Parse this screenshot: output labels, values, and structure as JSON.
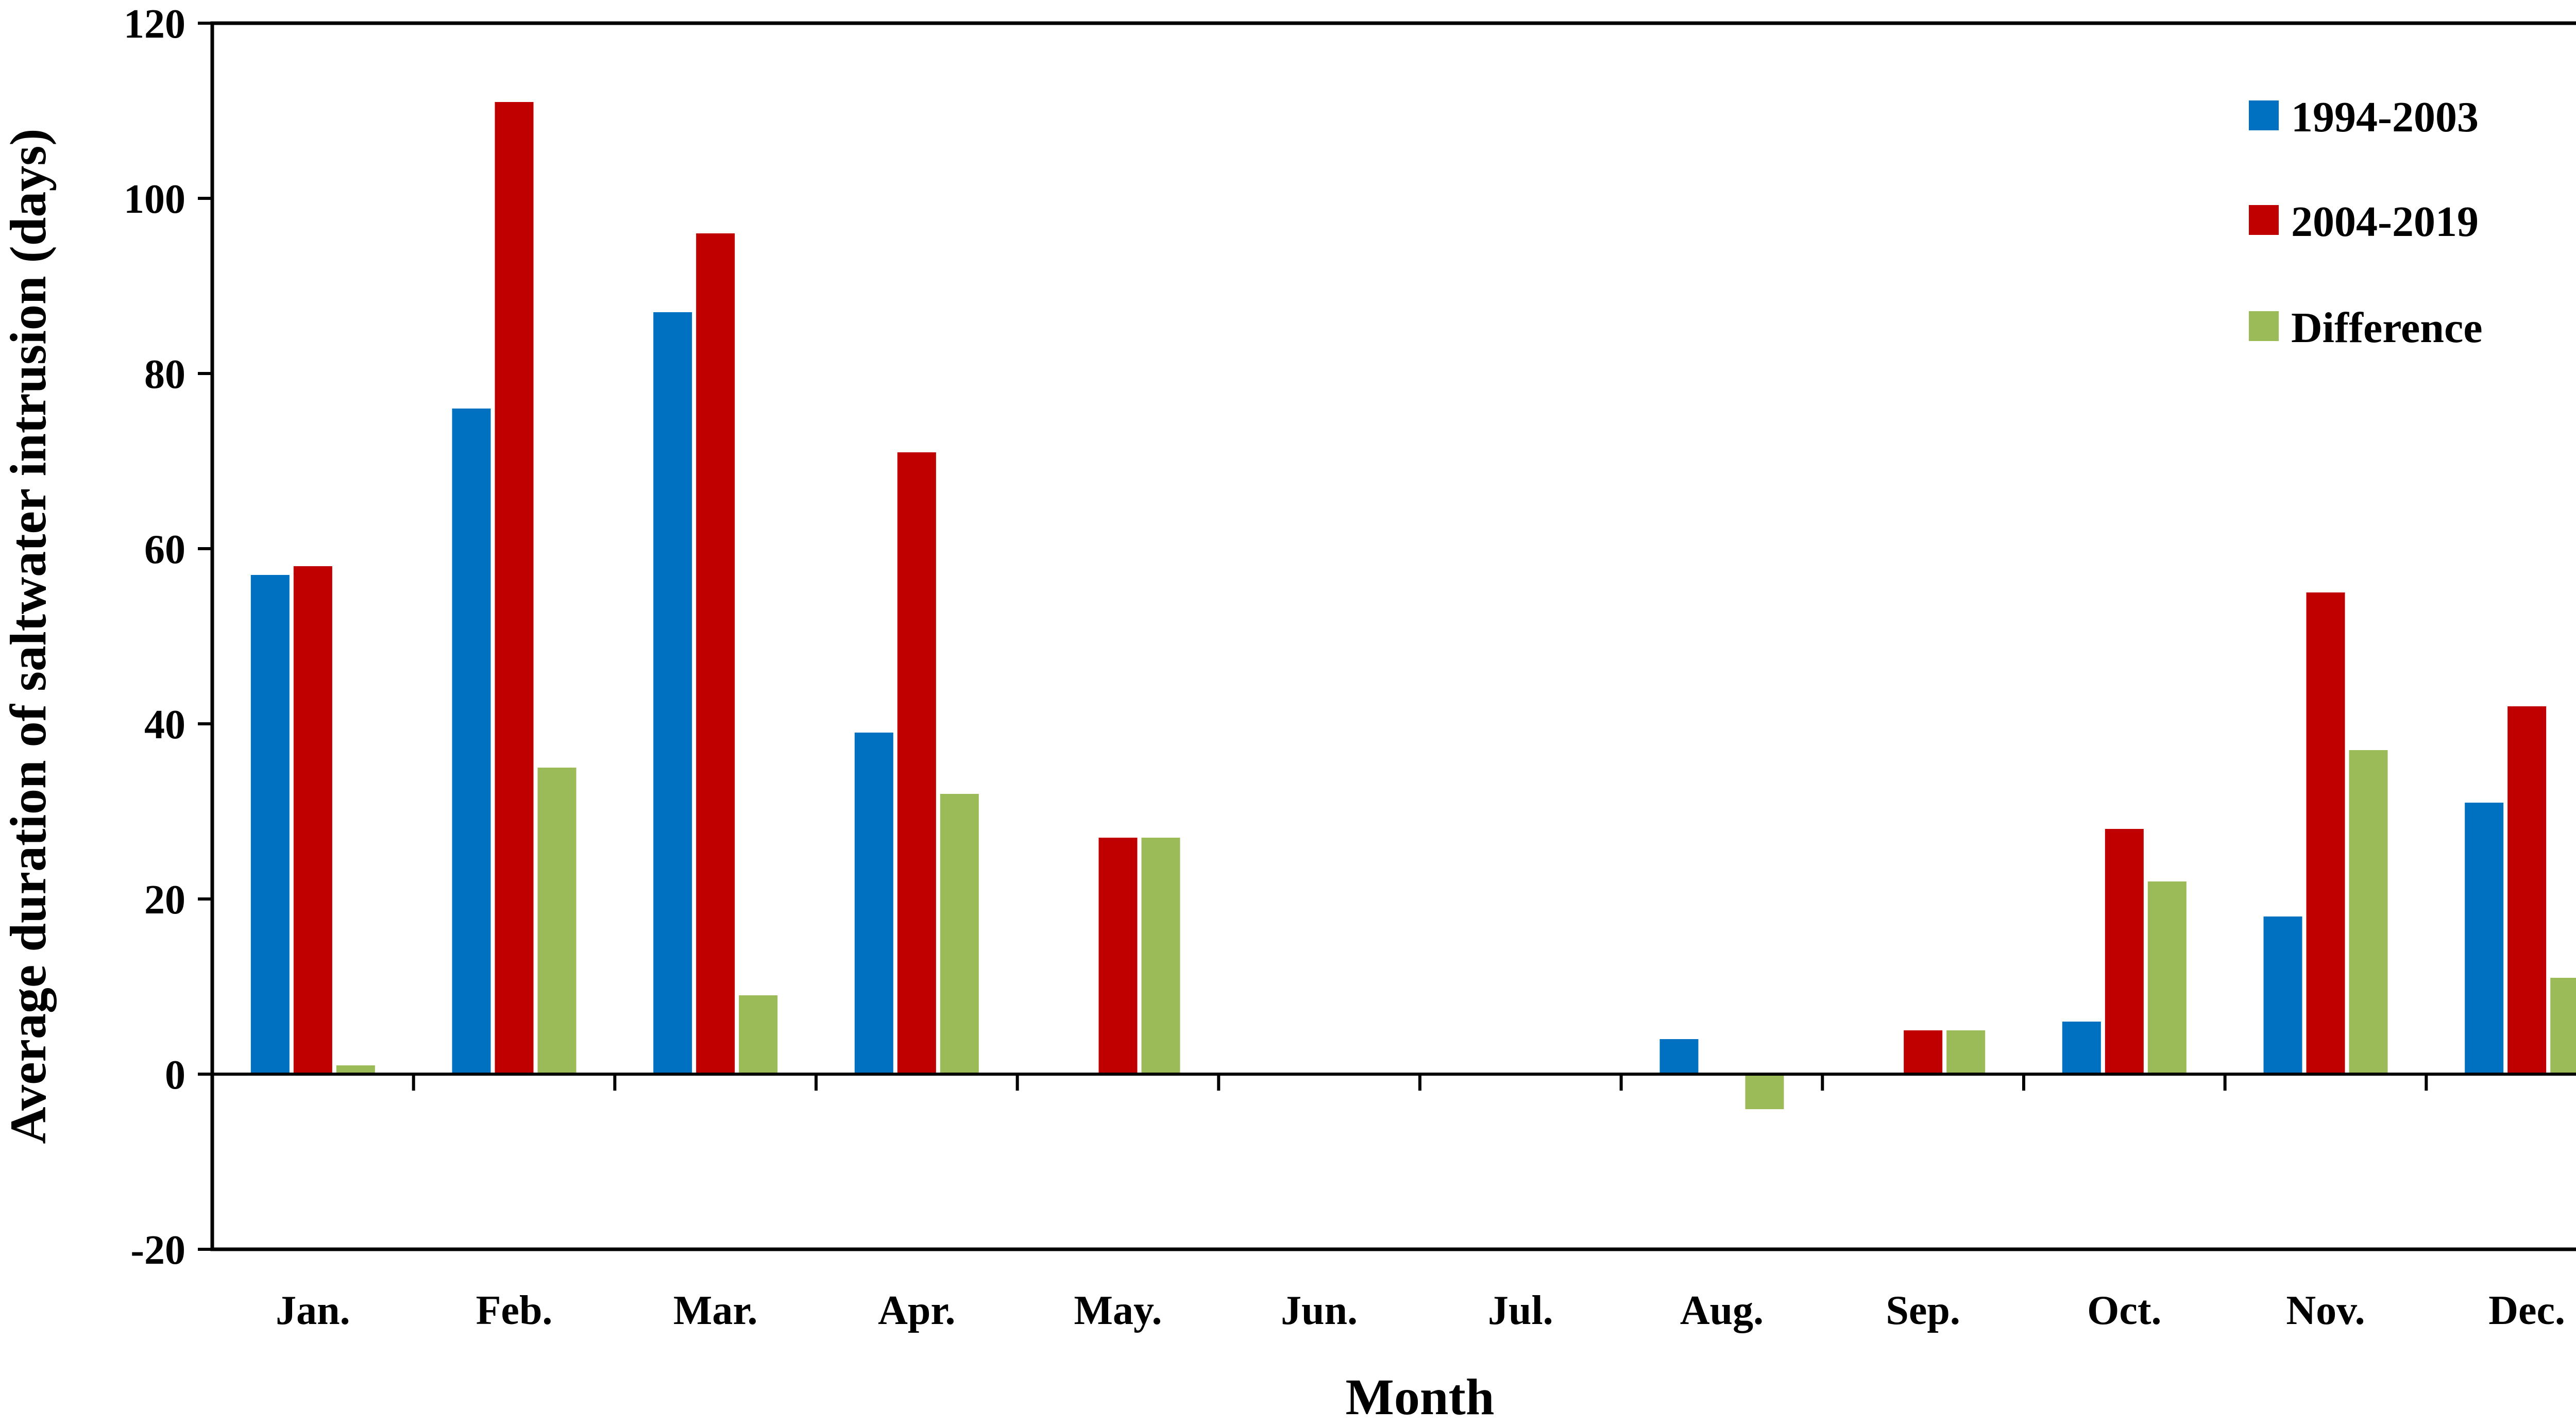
{
  "chart_data": {
    "type": "bar",
    "xlabel": "Month",
    "ylabel": "Average duration of saltwater intrusion (days)",
    "ylim": [
      -20,
      120
    ],
    "yticks": [
      -20,
      0,
      20,
      40,
      60,
      80,
      100,
      120
    ],
    "grid": false,
    "legend_position": "top-right",
    "categories": [
      "Jan.",
      "Feb.",
      "Mar.",
      "Apr.",
      "May.",
      "Jun.",
      "Jul.",
      "Aug.",
      "Sep.",
      "Oct.",
      "Nov.",
      "Dec."
    ],
    "series": [
      {
        "name": "1994-2003",
        "color": "#0070C0",
        "values": [
          57,
          76,
          87,
          39,
          0,
          0,
          0,
          4,
          0,
          6,
          18,
          31
        ]
      },
      {
        "name": "2004-2019",
        "color": "#C00000",
        "values": [
          58,
          111,
          96,
          71,
          27,
          0,
          0,
          0,
          5,
          28,
          55,
          42
        ]
      },
      {
        "name": "Difference",
        "color": "#9BBB59",
        "values": [
          1,
          35,
          9,
          32,
          27,
          0,
          0,
          -4,
          5,
          22,
          37,
          11
        ]
      }
    ]
  }
}
